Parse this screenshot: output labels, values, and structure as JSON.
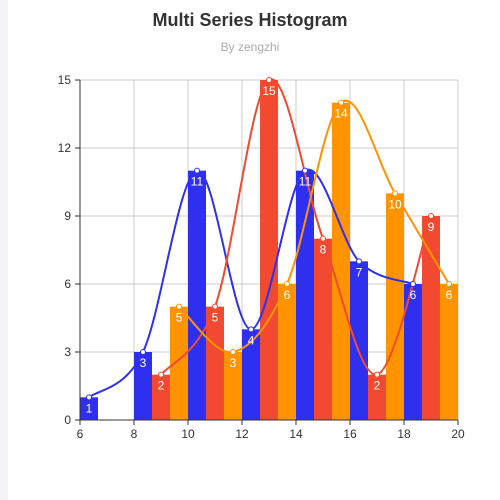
{
  "header": {
    "title": "Multi Series Histogram",
    "subtitle": "By zengzhi"
  },
  "chart_data": {
    "type": "bar",
    "title": "Multi Series Histogram",
    "subtitle": "By zengzhi",
    "xlabel": "",
    "ylabel": "",
    "xlim": [
      6,
      20
    ],
    "ylim": [
      0,
      15
    ],
    "x_ticks": [
      6,
      8,
      10,
      12,
      14,
      16,
      18,
      20
    ],
    "y_ticks": [
      0,
      3,
      6,
      9,
      12,
      15
    ],
    "grid": true,
    "legend": "none",
    "bar_width": 0.667,
    "series": [
      {
        "color": "#2f2ff0",
        "bars": [
          {
            "x0": 6.0,
            "x1": 6.667,
            "value": 1
          },
          {
            "x0": 8.0,
            "x1": 8.667,
            "value": 3
          },
          {
            "x0": 10.0,
            "x1": 10.667,
            "value": 11
          },
          {
            "x0": 12.0,
            "x1": 12.667,
            "value": 4
          },
          {
            "x0": 14.0,
            "x1": 14.667,
            "value": 11
          },
          {
            "x0": 16.0,
            "x1": 16.667,
            "value": 7
          },
          {
            "x0": 18.0,
            "x1": 18.667,
            "value": 6
          }
        ]
      },
      {
        "color": "#f24a30",
        "bars": [
          {
            "x0": 8.667,
            "x1": 9.333,
            "value": 2
          },
          {
            "x0": 10.667,
            "x1": 11.333,
            "value": 5
          },
          {
            "x0": 12.667,
            "x1": 13.333,
            "value": 15
          },
          {
            "x0": 14.667,
            "x1": 15.333,
            "value": 8
          },
          {
            "x0": 16.667,
            "x1": 17.333,
            "value": 2
          },
          {
            "x0": 18.667,
            "x1": 19.333,
            "value": 9
          }
        ]
      },
      {
        "color": "#ff9400",
        "bars": [
          {
            "x0": 9.333,
            "x1": 10.0,
            "value": 5
          },
          {
            "x0": 11.333,
            "x1": 12.0,
            "value": 3
          },
          {
            "x0": 13.333,
            "x1": 14.0,
            "value": 6
          },
          {
            "x0": 15.333,
            "x1": 16.0,
            "value": 14
          },
          {
            "x0": 17.333,
            "x1": 18.0,
            "value": 10
          },
          {
            "x0": 19.333,
            "x1": 20.0,
            "value": 6
          }
        ]
      }
    ]
  }
}
